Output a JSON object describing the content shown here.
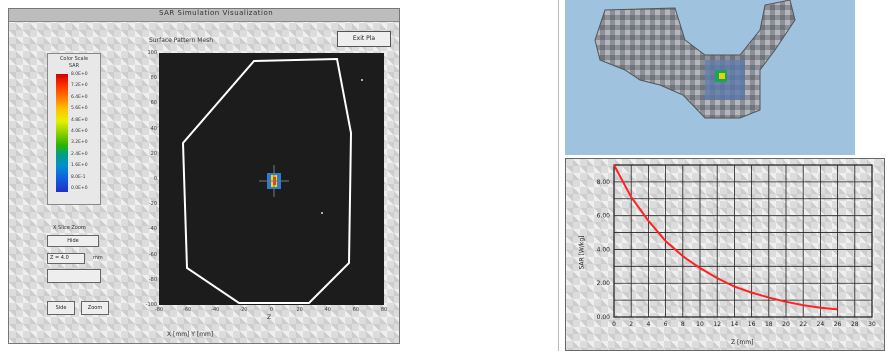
{
  "left_window": {
    "title": "SAR Simulation Visualization",
    "menu": "Surface  Pattern  Mesh",
    "exit_button": "Exit Pla",
    "scale": {
      "title": "Color Scale",
      "unit": "SAR",
      "labels": [
        "8.0E+0",
        "7.2E+0",
        "6.4E+0",
        "5.6E+0",
        "4.8E+0",
        "4.0E+0",
        "3.2E+0",
        "2.4E+0",
        "1.6E+0",
        "8.0E-1",
        "0.0E+0"
      ]
    },
    "slider_label": "X Slice Zoom",
    "btn1": "Hide",
    "field_z": "Z = 4.0",
    "field_unit": "mm",
    "btn_left": "Side",
    "btn_right": "Zoom",
    "y_ticks": [
      "100",
      "80",
      "60",
      "40",
      "20",
      "0",
      "-20",
      "-40",
      "-60",
      "-80",
      "-100"
    ],
    "x_ticks": [
      "-80",
      "-60",
      "-40",
      "-20",
      "0",
      "20",
      "40",
      "60",
      "80"
    ],
    "x_axis_label": "Z",
    "bottom_fields": "X [mm]   Y [mm]"
  },
  "chart_data": {
    "type": "line",
    "x": [
      0,
      2,
      4,
      6,
      8,
      10,
      12,
      14,
      16,
      18,
      20,
      22,
      24,
      26
    ],
    "y": [
      9.0,
      7.1,
      5.7,
      4.5,
      3.6,
      2.9,
      2.3,
      1.8,
      1.45,
      1.15,
      0.9,
      0.7,
      0.55,
      0.45
    ],
    "xlim": [
      0,
      30
    ],
    "ylim": [
      0,
      9
    ],
    "x_ticks": [
      "0",
      "2",
      "4",
      "6",
      "8",
      "10",
      "12",
      "14",
      "16",
      "18",
      "20",
      "22",
      "24",
      "26",
      "28",
      "30"
    ],
    "y_ticks": [
      "0.00",
      "2.00",
      "4.00",
      "6.00",
      "8.00"
    ],
    "xlabel": "Z [mm]",
    "ylabel": "SAR [W/kg]",
    "grid": true,
    "series_color": "#ff2222"
  }
}
